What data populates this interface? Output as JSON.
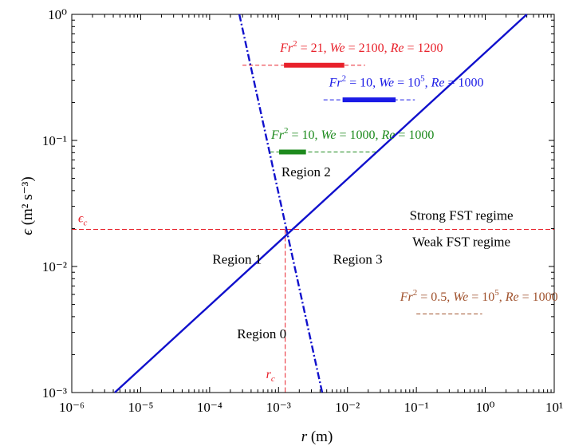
{
  "chart_data": {
    "type": "line",
    "title": "",
    "xlabel": "r (m)",
    "ylabel": "ϵ (m² s⁻³)",
    "xscale": "log",
    "yscale": "log",
    "xlim": [
      1e-06,
      10
    ],
    "ylim": [
      0.001,
      1
    ],
    "grid": false,
    "x_ticks": [
      {
        "value": 1e-06,
        "label": "10⁻⁶"
      },
      {
        "value": 1e-05,
        "label": "10⁻⁵"
      },
      {
        "value": 0.0001,
        "label": "10⁻⁴"
      },
      {
        "value": 0.001,
        "label": "10⁻³"
      },
      {
        "value": 0.01,
        "label": "10⁻²"
      },
      {
        "value": 0.1,
        "label": "10⁻¹"
      },
      {
        "value": 1,
        "label": "10⁰"
      },
      {
        "value": 10,
        "label": "10¹"
      }
    ],
    "y_ticks": [
      {
        "value": 0.001,
        "label": "10⁻³"
      },
      {
        "value": 0.01,
        "label": "10⁻²"
      },
      {
        "value": 0.1,
        "label": "10⁻¹"
      },
      {
        "value": 1,
        "label": "10⁰"
      }
    ],
    "series": [
      {
        "style": "solid",
        "color": "#1010cc",
        "x": [
          4.2e-06,
          4.0
        ],
        "y": [
          0.001,
          1
        ]
      },
      {
        "style": "dashdot",
        "color": "#1010cc",
        "x": [
          0.00027,
          0.0043
        ],
        "y": [
          1,
          0.001
        ]
      }
    ],
    "reference_lines": [
      {
        "orientation": "horizontal",
        "value": 0.0197,
        "color": "#e8202a",
        "style": "dashed",
        "label": "ϵc"
      },
      {
        "orientation": "vertical",
        "value": 0.00125,
        "ymax": 0.0197,
        "color": "#e8202a",
        "style": "dashed",
        "label": "rc"
      }
    ],
    "regions": [
      {
        "label": "Region 0",
        "x": 0.00025,
        "y": 0.0027
      },
      {
        "label": "Region 1",
        "x": 0.00011,
        "y": 0.0105
      },
      {
        "label": "Region 2",
        "x": 0.0011,
        "y": 0.052
      },
      {
        "label": "Region 3",
        "x": 0.0062,
        "y": 0.0105
      }
    ],
    "regime_labels": [
      {
        "label": "Strong FST regime",
        "x": 0.45,
        "y": 0.0235
      },
      {
        "label": "Weak FST regime",
        "x": 0.45,
        "y": 0.0145
      }
    ],
    "cases": [
      {
        "fr2": "21",
        "we": "2100",
        "we_exp": "",
        "re": "1200",
        "color": "#e8202a",
        "label_x": 0.00105,
        "label_y": 0.505,
        "dash_x": [
          0.0003,
          0.018
        ],
        "bar_x": [
          0.0012,
          0.009
        ],
        "y": 0.395
      },
      {
        "fr2": "10",
        "we": "10",
        "we_exp": "5",
        "re": "1000",
        "color": "#1a1ae6",
        "label_x": 0.0054,
        "label_y": 0.268,
        "dash_x": [
          0.0045,
          0.095
        ],
        "bar_x": [
          0.0085,
          0.05
        ],
        "y": 0.21
      },
      {
        "fr2": "10",
        "we": "1000",
        "we_exp": "",
        "re": "1000",
        "color": "#1d8a1d",
        "label_x": 0.00078,
        "label_y": 0.103,
        "dash_x": [
          0.00075,
          0.026
        ],
        "bar_x": [
          0.00102,
          0.0025
        ],
        "y": 0.081
      },
      {
        "fr2": "0.5",
        "we": "10",
        "we_exp": "5",
        "re": "1000",
        "color": "#a0522d",
        "label_x": 0.058,
        "label_y": 0.00535,
        "dash_x": [
          0.1,
          0.9
        ],
        "bar_x": null,
        "y": 0.0042
      }
    ]
  }
}
